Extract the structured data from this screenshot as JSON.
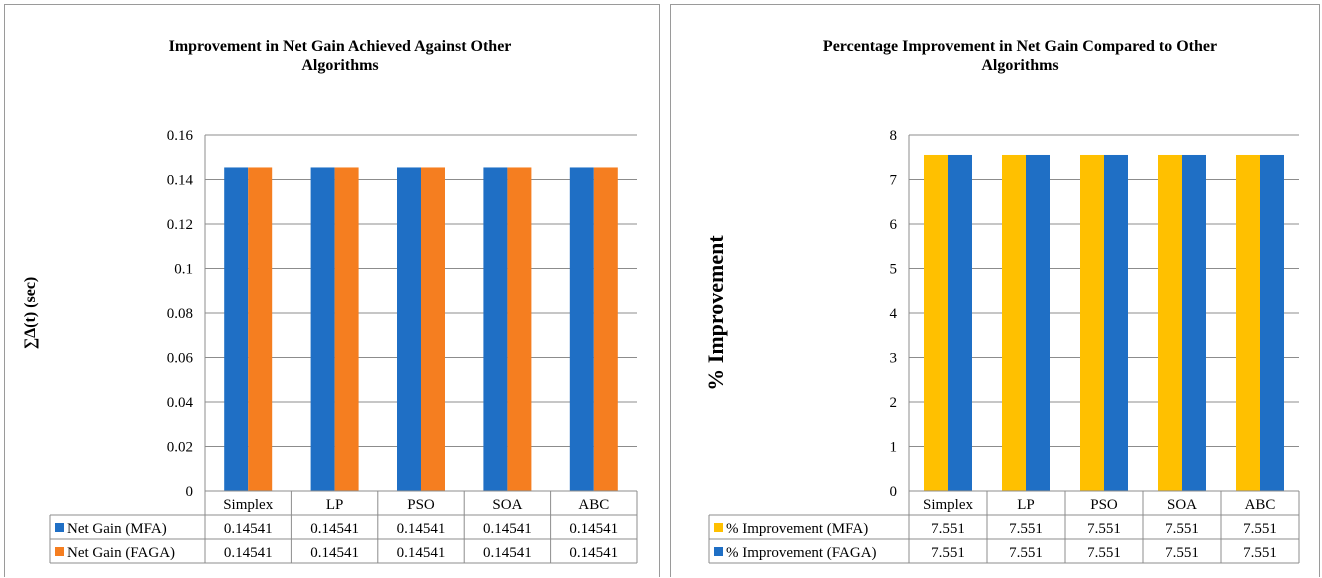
{
  "colors": {
    "blue": "#1F6FC5",
    "orange": "#F57E20",
    "gold": "#FFC000",
    "grid": "#8c8c8c",
    "table_border": "#8c8c8c"
  },
  "chart_data": [
    {
      "type": "bar",
      "title_lines": [
        "Improvement in Net Gain Achieved Against Other",
        "Algorithms"
      ],
      "ylabel": "∑Δ(t) (sec)",
      "xlabel": "",
      "categories": [
        "Simplex",
        "LP",
        "PSO",
        "SOA",
        "ABC"
      ],
      "ylim": [
        0,
        0.16
      ],
      "yticks": [
        "0",
        "0.02",
        "0.04",
        "0.06",
        "0.08",
        "0.1",
        "0.12",
        "0.14",
        "0.16"
      ],
      "grid": true,
      "legend_placement": "data-table",
      "series": [
        {
          "name": "Net Gain (MFA)",
          "color": "#1F6FC5",
          "values": [
            0.14541,
            0.14541,
            0.14541,
            0.14541,
            0.14541
          ],
          "labels": [
            "0.14541",
            "0.14541",
            "0.14541",
            "0.14541",
            "0.14541"
          ]
        },
        {
          "name": "Net Gain (FAGA)",
          "color": "#F57E20",
          "values": [
            0.14541,
            0.14541,
            0.14541,
            0.14541,
            0.14541
          ],
          "labels": [
            "0.14541",
            "0.14541",
            "0.14541",
            "0.14541",
            "0.14541"
          ]
        }
      ]
    },
    {
      "type": "bar",
      "title_lines": [
        "Percentage Improvement in Net Gain Compared to Other",
        "Algorithms"
      ],
      "ylabel": "% Improvement",
      "xlabel": "",
      "categories": [
        "Simplex",
        "LP",
        "PSO",
        "SOA",
        "ABC"
      ],
      "ylim": [
        0,
        8
      ],
      "yticks": [
        "0",
        "1",
        "2",
        "3",
        "4",
        "5",
        "6",
        "7",
        "8"
      ],
      "grid": true,
      "legend_placement": "data-table",
      "series": [
        {
          "name": "% Improvement (MFA)",
          "color": "#FFC000",
          "values": [
            7.551,
            7.551,
            7.551,
            7.551,
            7.551
          ],
          "labels": [
            "7.551",
            "7.551",
            "7.551",
            "7.551",
            "7.551"
          ]
        },
        {
          "name": "% Improvement (FAGA)",
          "color": "#1F6FC5",
          "values": [
            7.551,
            7.551,
            7.551,
            7.551,
            7.551
          ],
          "labels": [
            "7.551",
            "7.551",
            "7.551",
            "7.551",
            "7.551"
          ]
        }
      ]
    }
  ]
}
